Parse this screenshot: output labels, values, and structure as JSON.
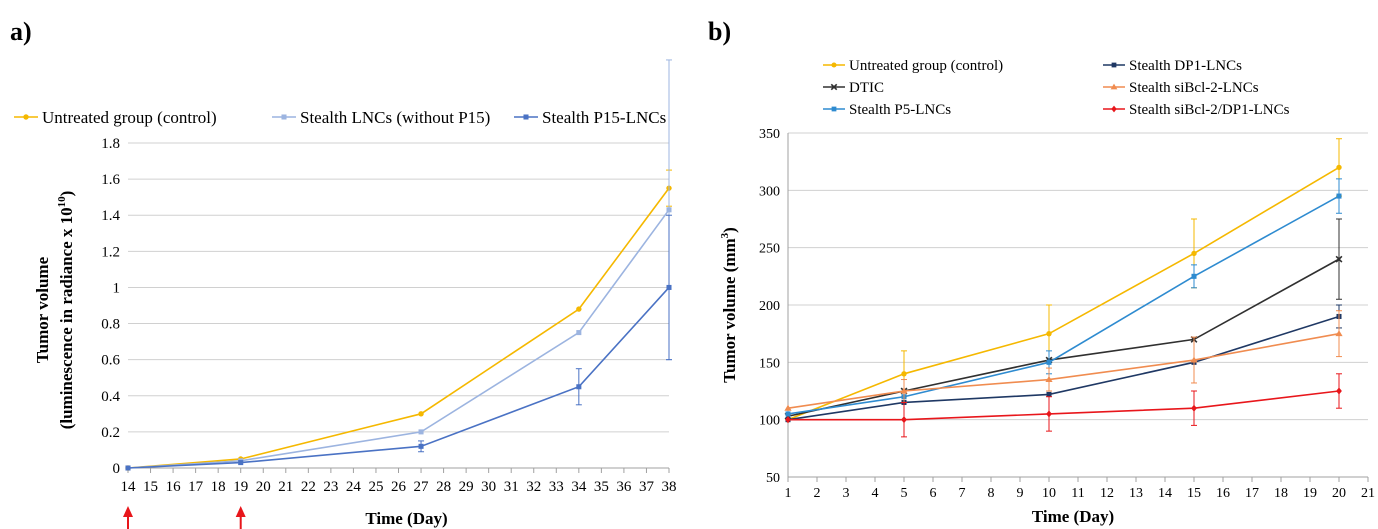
{
  "panels": {
    "a_label": "a)",
    "b_label": "b)"
  },
  "chart_data": [
    {
      "type": "line",
      "panel": "a)",
      "xlabel": "Time (Day)",
      "ylabel_line1": "Tumor volume",
      "ylabel_line2": "(luminescence in radiance x 10",
      "ylabel_sup": "10",
      "ylabel_end": ")",
      "x_ticks": [
        14,
        15,
        16,
        17,
        18,
        19,
        20,
        21,
        22,
        23,
        24,
        25,
        26,
        27,
        28,
        29,
        30,
        31,
        32,
        33,
        34,
        35,
        36,
        37,
        38
      ],
      "xlim": [
        14,
        38
      ],
      "y_ticks": [
        "0",
        "0.2",
        "0.4",
        "0.6",
        "0.8",
        "1",
        "1.2",
        "1.4",
        "1.6",
        "1.8"
      ],
      "ylim": [
        0,
        1.8
      ],
      "grid": true,
      "legend_position": "top",
      "treatment_days": [
        14,
        19
      ],
      "treatment_marker_color": "#e8161b",
      "series": [
        {
          "name": "Untreated group (control)",
          "color": "#f5b800",
          "marker": "circle",
          "x": [
            14,
            19,
            27,
            34,
            38
          ],
          "y": [
            0,
            0.05,
            0.3,
            0.88,
            1.55
          ],
          "err": [
            0,
            0,
            0,
            0,
            0.1
          ]
        },
        {
          "name": "Stealth LNCs (without P15)",
          "color": "#9cb4e0",
          "marker": "square",
          "x": [
            14,
            19,
            27,
            34,
            38
          ],
          "y": [
            0,
            0.04,
            0.2,
            0.75,
            1.43
          ],
          "err": [
            0,
            0,
            0,
            0,
            0.83
          ]
        },
        {
          "name": "Stealth P15-LNCs",
          "color": "#4a72c4",
          "marker": "square",
          "x": [
            14,
            19,
            27,
            34,
            38
          ],
          "y": [
            0,
            0.03,
            0.12,
            0.45,
            1.0
          ],
          "err": [
            0,
            0,
            0.03,
            0.1,
            0.4
          ]
        }
      ]
    },
    {
      "type": "line",
      "panel": "b)",
      "xlabel": "Time (Day)",
      "ylabel": "Tumor volume (mm",
      "ylabel_sup": "3",
      "ylabel_end": ")",
      "x_ticks": [
        1,
        2,
        3,
        4,
        5,
        6,
        7,
        8,
        9,
        10,
        11,
        12,
        13,
        14,
        15,
        16,
        17,
        18,
        19,
        20,
        21
      ],
      "xlim": [
        1,
        21
      ],
      "y_ticks": [
        "50",
        "100",
        "150",
        "200",
        "250",
        "300",
        "350"
      ],
      "ylim": [
        50,
        350
      ],
      "grid": true,
      "legend_position": "top",
      "series": [
        {
          "name": "Untreated group (control)",
          "color": "#f5b800",
          "marker": "circle",
          "x": [
            1,
            5,
            10,
            15,
            20
          ],
          "y": [
            100,
            140,
            175,
            245,
            320
          ],
          "err": [
            0,
            20,
            25,
            30,
            25
          ]
        },
        {
          "name": "DTIC",
          "color": "#303030",
          "marker": "x",
          "x": [
            1,
            5,
            10,
            15,
            20
          ],
          "y": [
            103,
            125,
            152,
            170,
            240
          ],
          "err": [
            0,
            0,
            0,
            0,
            35
          ]
        },
        {
          "name": "Stealth P5-LNCs",
          "color": "#2e8bd0",
          "marker": "square",
          "x": [
            1,
            5,
            10,
            15,
            20
          ],
          "y": [
            105,
            120,
            150,
            225,
            295
          ],
          "err": [
            0,
            5,
            10,
            10,
            15
          ]
        },
        {
          "name": "Stealth DP1-LNCs",
          "color": "#1f3864",
          "marker": "square",
          "x": [
            1,
            5,
            10,
            15,
            20
          ],
          "y": [
            100,
            115,
            122,
            150,
            190
          ],
          "err": [
            0,
            0,
            0,
            0,
            10
          ]
        },
        {
          "name": "Stealth siBcl-2-LNCs",
          "color": "#f08c50",
          "marker": "triangle",
          "x": [
            1,
            5,
            10,
            15,
            20
          ],
          "y": [
            110,
            125,
            135,
            152,
            175
          ],
          "err": [
            0,
            10,
            10,
            20,
            20
          ]
        },
        {
          "name": "Stealth siBcl-2/DP1-LNCs",
          "color": "#e8161b",
          "marker": "diamond",
          "x": [
            1,
            5,
            10,
            15,
            20
          ],
          "y": [
            100,
            100,
            105,
            110,
            125
          ],
          "err": [
            0,
            15,
            15,
            15,
            15
          ]
        }
      ]
    }
  ]
}
